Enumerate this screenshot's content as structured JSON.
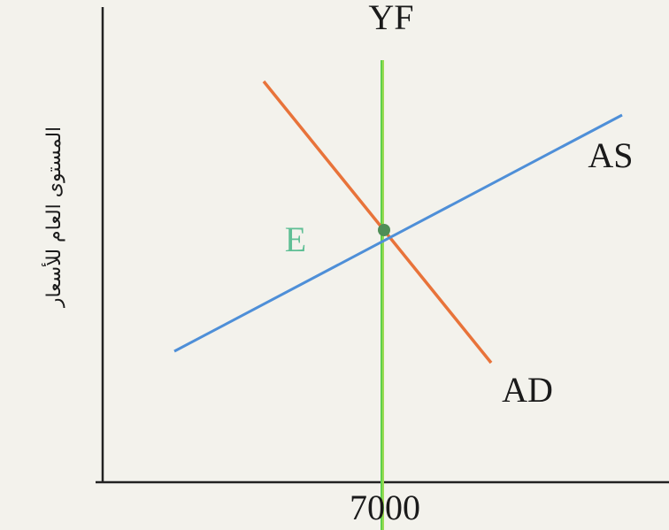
{
  "diagram": {
    "y_axis_label": "المستوى العام للأسعار",
    "vertical_line_label": "YF",
    "supply_label": "AS",
    "demand_label": "AD",
    "equilibrium_label": "E",
    "x_value_label": 7000
  }
}
